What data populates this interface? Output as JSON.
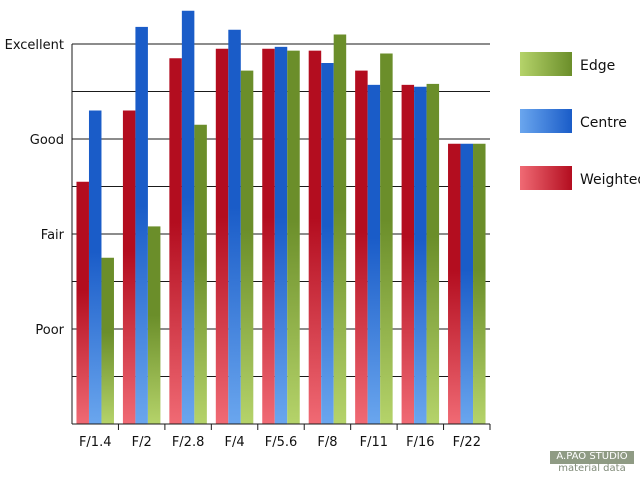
{
  "chart_data": {
    "type": "bar",
    "title": "",
    "xlabel": "",
    "ylabel": "",
    "categories": [
      "F/1.4",
      "F/2",
      "F/2.8",
      "F/4",
      "F/5.6",
      "F/8",
      "F/11",
      "F/16",
      "F/22"
    ],
    "y_tick_labels": [
      "Excellent",
      "Good",
      "Fair",
      "Poor"
    ],
    "y_tick_values": [
      4,
      3,
      2,
      1
    ],
    "ylim": [
      0,
      4
    ],
    "grid": "horizontal",
    "legend_position": "right",
    "series": [
      {
        "name": "Weighted",
        "values": [
          2.55,
          3.3,
          3.85,
          3.95,
          3.95,
          3.93,
          3.72,
          3.57,
          2.95
        ],
        "colors": [
          "#b30d1f",
          "#f06a74"
        ]
      },
      {
        "name": "Centre",
        "values": [
          3.3,
          4.18,
          4.35,
          4.15,
          3.97,
          3.8,
          3.57,
          3.55,
          2.95
        ],
        "colors": [
          "#1a5cc8",
          "#6aa6ee"
        ]
      },
      {
        "name": "Edge",
        "values": [
          1.75,
          2.08,
          3.15,
          3.72,
          3.93,
          4.1,
          3.9,
          3.58,
          2.95
        ],
        "colors": [
          "#6b8e2a",
          "#b5d36a"
        ]
      }
    ],
    "legend_order": [
      "Edge",
      "Centre",
      "Weighted"
    ]
  },
  "watermark": {
    "line1": "A.PAO STUDIO",
    "line2": "material data"
  }
}
